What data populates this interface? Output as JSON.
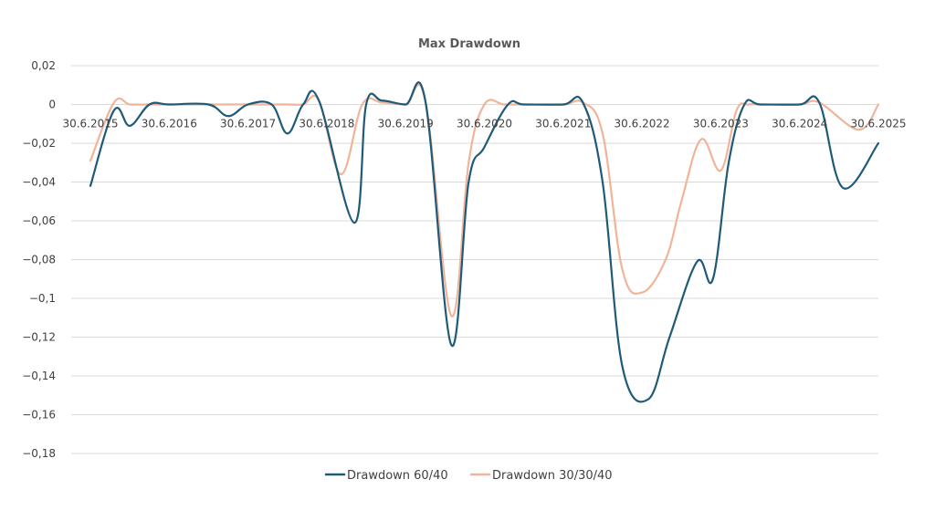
{
  "chart_data": {
    "type": "line",
    "title": "Max Drawdown",
    "xlabel": "",
    "ylabel": "",
    "ylim": [
      -0.18,
      0.02
    ],
    "y_ticks": [
      {
        "value": 0.02,
        "label": "0,02"
      },
      {
        "value": 0,
        "label": "0"
      },
      {
        "value": -0.02,
        "label": "−0,02"
      },
      {
        "value": -0.04,
        "label": "−0,04"
      },
      {
        "value": -0.06,
        "label": "−0,06"
      },
      {
        "value": -0.08,
        "label": "−0,08"
      },
      {
        "value": -0.1,
        "label": "−0,1"
      },
      {
        "value": -0.12,
        "label": "−0,12"
      },
      {
        "value": -0.14,
        "label": "−0,14"
      },
      {
        "value": -0.16,
        "label": "−0,16"
      },
      {
        "value": -0.18,
        "label": "−0,18"
      }
    ],
    "x_range": [
      2015.5,
      2025.5
    ],
    "x_ticks": [
      {
        "value": 2015.5,
        "label": "30.6.2015"
      },
      {
        "value": 2016.5,
        "label": "30.6.2016"
      },
      {
        "value": 2017.5,
        "label": "30.6.2017"
      },
      {
        "value": 2018.5,
        "label": "30.6.2018"
      },
      {
        "value": 2019.5,
        "label": "30.6.2019"
      },
      {
        "value": 2020.5,
        "label": "30.6.2020"
      },
      {
        "value": 2021.5,
        "label": "30.6.2021"
      },
      {
        "value": 2022.5,
        "label": "30.6.2022"
      },
      {
        "value": 2023.5,
        "label": "30.6.2023"
      },
      {
        "value": 2024.5,
        "label": "30.6.2024"
      },
      {
        "value": 2025.5,
        "label": "30.6.2025"
      }
    ],
    "grid": true,
    "legend_position": "bottom",
    "series": [
      {
        "name": "Drawdown 60/40",
        "color": "#1f5a78",
        "points": [
          [
            2015.5,
            -0.042
          ],
          [
            2015.8,
            -0.003
          ],
          [
            2016.0,
            -0.011
          ],
          [
            2016.25,
            0.0
          ],
          [
            2016.5,
            0.0
          ],
          [
            2017.0,
            0.0
          ],
          [
            2017.25,
            -0.006
          ],
          [
            2017.5,
            0.0
          ],
          [
            2017.8,
            0.0
          ],
          [
            2018.0,
            -0.015
          ],
          [
            2018.2,
            0.0
          ],
          [
            2018.4,
            0.002
          ],
          [
            2018.85,
            -0.061
          ],
          [
            2019.0,
            0.0
          ],
          [
            2019.2,
            0.002
          ],
          [
            2019.5,
            0.0
          ],
          [
            2019.75,
            0.002
          ],
          [
            2020.08,
            -0.124
          ],
          [
            2020.3,
            -0.04
          ],
          [
            2020.5,
            -0.022
          ],
          [
            2020.8,
            0.0
          ],
          [
            2021.0,
            0.0
          ],
          [
            2021.5,
            0.0
          ],
          [
            2021.75,
            0.001
          ],
          [
            2022.0,
            -0.04
          ],
          [
            2022.25,
            -0.135
          ],
          [
            2022.58,
            -0.152
          ],
          [
            2022.85,
            -0.12
          ],
          [
            2023.2,
            -0.081
          ],
          [
            2023.4,
            -0.09
          ],
          [
            2023.6,
            -0.03
          ],
          [
            2023.8,
            0.0
          ],
          [
            2024.0,
            0.0
          ],
          [
            2024.5,
            0.0
          ],
          [
            2024.75,
            0.001
          ],
          [
            2025.05,
            -0.043
          ],
          [
            2025.5,
            -0.02
          ]
        ]
      },
      {
        "name": "Drawdown 30/30/40",
        "color": "#f0b49a",
        "points": [
          [
            2015.5,
            -0.029
          ],
          [
            2015.8,
            0.001
          ],
          [
            2016.0,
            0.0
          ],
          [
            2016.25,
            0.0
          ],
          [
            2016.5,
            0.0
          ],
          [
            2017.0,
            0.0
          ],
          [
            2017.5,
            0.0
          ],
          [
            2018.0,
            0.0
          ],
          [
            2018.2,
            0.0
          ],
          [
            2018.4,
            0.002
          ],
          [
            2018.68,
            -0.036
          ],
          [
            2018.95,
            0.0
          ],
          [
            2019.2,
            0.001
          ],
          [
            2019.5,
            0.0
          ],
          [
            2019.75,
            0.002
          ],
          [
            2020.08,
            -0.109
          ],
          [
            2020.3,
            -0.03
          ],
          [
            2020.5,
            0.0
          ],
          [
            2020.75,
            0.0
          ],
          [
            2021.0,
            0.0
          ],
          [
            2021.5,
            0.0
          ],
          [
            2021.75,
            0.001
          ],
          [
            2022.0,
            -0.015
          ],
          [
            2022.25,
            -0.085
          ],
          [
            2022.5,
            -0.097
          ],
          [
            2022.8,
            -0.08
          ],
          [
            2023.0,
            -0.05
          ],
          [
            2023.25,
            -0.018
          ],
          [
            2023.5,
            -0.034
          ],
          [
            2023.7,
            -0.003
          ],
          [
            2023.85,
            0.0
          ],
          [
            2024.0,
            0.0
          ],
          [
            2024.5,
            0.0
          ],
          [
            2024.75,
            0.001
          ],
          [
            2025.25,
            -0.013
          ],
          [
            2025.5,
            0.0
          ]
        ]
      }
    ]
  }
}
